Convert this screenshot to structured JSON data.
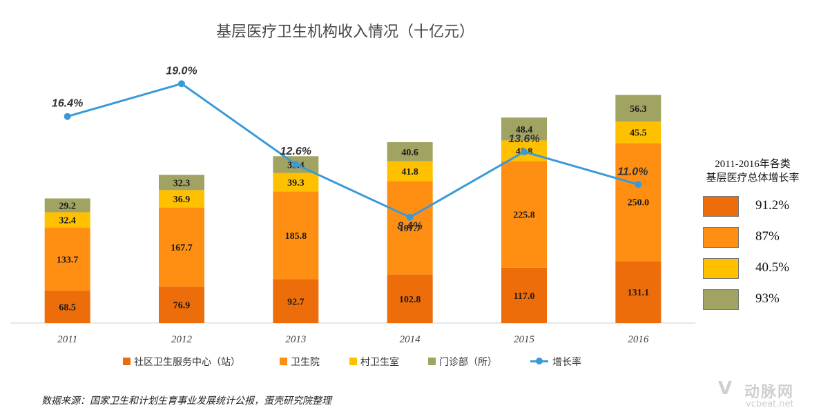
{
  "title": "基层医疗卫生机构收入情况（十亿元）",
  "source": "数据来源：国家卫生和计划生育事业发展统计公报，蛋壳研究院整理",
  "logo": {
    "cn": "动脉网",
    "en": "vcbeat.net",
    "mark": "V"
  },
  "colors": {
    "community": "#ed6d0b",
    "hospital": "#ff8f12",
    "village": "#ffc000",
    "clinic": "#a1a362",
    "growth": "#3a9ad9"
  },
  "side_panel": {
    "title_line1": "2011-2016年各类",
    "title_line2": "基层医疗总体增长率",
    "items": [
      {
        "value": "91.2%",
        "color": "#ed6d0b"
      },
      {
        "value": "87%",
        "color": "#ff8f12"
      },
      {
        "value": "40.5%",
        "color": "#ffc000"
      },
      {
        "value": "93%",
        "color": "#a1a362"
      }
    ]
  },
  "legend": [
    {
      "label": "社区卫生服务中心（站）",
      "color": "#ed6d0b",
      "kind": "bar"
    },
    {
      "label": "卫生院",
      "color": "#ff8f12",
      "kind": "bar"
    },
    {
      "label": "村卫生室",
      "color": "#ffc000",
      "kind": "bar"
    },
    {
      "label": "门诊部（所）",
      "color": "#a1a362",
      "kind": "bar"
    },
    {
      "label": "增长率",
      "color": "#3a9ad9",
      "kind": "line"
    }
  ],
  "chart_data": {
    "type": "bar",
    "stacked": true,
    "categories": [
      "2011",
      "2012",
      "2013",
      "2014",
      "2015",
      "2016"
    ],
    "series": [
      {
        "name": "社区卫生服务中心（站）",
        "values": [
          68.5,
          76.9,
          92.7,
          102.8,
          117.0,
          131.1
        ],
        "labels": [
          "68.5",
          "76.9",
          "92.7",
          "102.8",
          "117.0",
          "131.1"
        ]
      },
      {
        "name": "卫生院",
        "values": [
          133.7,
          167.7,
          185.8,
          197.7,
          225.8,
          250.0
        ],
        "labels": [
          "133.7",
          "167.7",
          "185.8",
          "197.7",
          "225.8",
          "250.0"
        ]
      },
      {
        "name": "村卫生室",
        "values": [
          32.4,
          36.9,
          39.3,
          41.8,
          43.8,
          45.5
        ],
        "labels": [
          "32.4",
          "36.9",
          "39.3",
          "41.8",
          "43.8",
          "45.5"
        ]
      },
      {
        "name": "门诊部（所）",
        "values": [
          29.2,
          32.3,
          35.4,
          40.6,
          48.4,
          56.3
        ],
        "labels": [
          "29.2",
          "32.3",
          "35.4",
          "40.6",
          "48.4",
          "56.3"
        ]
      }
    ],
    "line": {
      "name": "增长率",
      "values": [
        16.4,
        19.0,
        12.6,
        8.4,
        13.6,
        11.0
      ],
      "labels": [
        "16.4%",
        "19.0%",
        "12.6%",
        "8.4%",
        "13.6%",
        "11.0%"
      ]
    },
    "bar_ylim": [
      0,
      640
    ],
    "line_ylim": [
      0,
      24
    ],
    "grid": false,
    "legend_position": "bottom"
  }
}
